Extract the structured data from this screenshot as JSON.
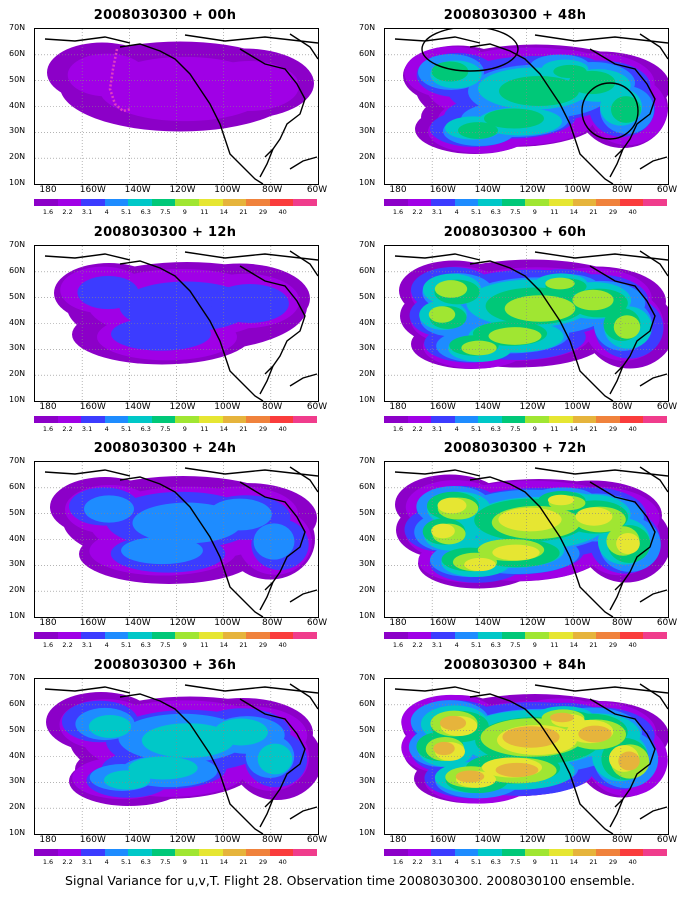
{
  "caption": "Signal Variance for u,v,T. Flight 28. Observation time 2008030300. 2008030100 ensemble.",
  "lat_labels": [
    "70N",
    "60N",
    "50N",
    "40N",
    "30N",
    "20N",
    "10N"
  ],
  "lon_labels": [
    "180",
    "160W",
    "140W",
    "120W",
    "100W",
    "80W",
    "60W"
  ],
  "colorbar": {
    "colors": [
      "#8c00c8",
      "#a000e6",
      "#3c3cff",
      "#1e8cff",
      "#00c8c8",
      "#00c878",
      "#a0e632",
      "#e6e632",
      "#e6b43c",
      "#f0823c",
      "#fa3c3c",
      "#f03c8c"
    ],
    "labels": [
      "1.6",
      "2.2",
      "3.1",
      "4",
      "5.1",
      "6.3",
      "7.5",
      "9",
      "11",
      "14",
      "21",
      "29",
      "40"
    ]
  },
  "panels": [
    {
      "title": "2008030300 + 00h",
      "intensity": 0,
      "flight_track": true,
      "circles": false
    },
    {
      "title": "2008030300 + 12h",
      "intensity": 1,
      "flight_track": false,
      "circles": false
    },
    {
      "title": "2008030300 + 24h",
      "intensity": 2,
      "flight_track": false,
      "circles": false
    },
    {
      "title": "2008030300 + 36h",
      "intensity": 3,
      "flight_track": false,
      "circles": false
    },
    {
      "title": "2008030300 + 48h",
      "intensity": 4,
      "flight_track": false,
      "circles": true
    },
    {
      "title": "2008030300 + 60h",
      "intensity": 5,
      "flight_track": false,
      "circles": false
    },
    {
      "title": "2008030300 + 72h",
      "intensity": 6,
      "flight_track": false,
      "circles": false
    },
    {
      "title": "2008030300 + 84h",
      "intensity": 7,
      "flight_track": false,
      "circles": false
    }
  ]
}
